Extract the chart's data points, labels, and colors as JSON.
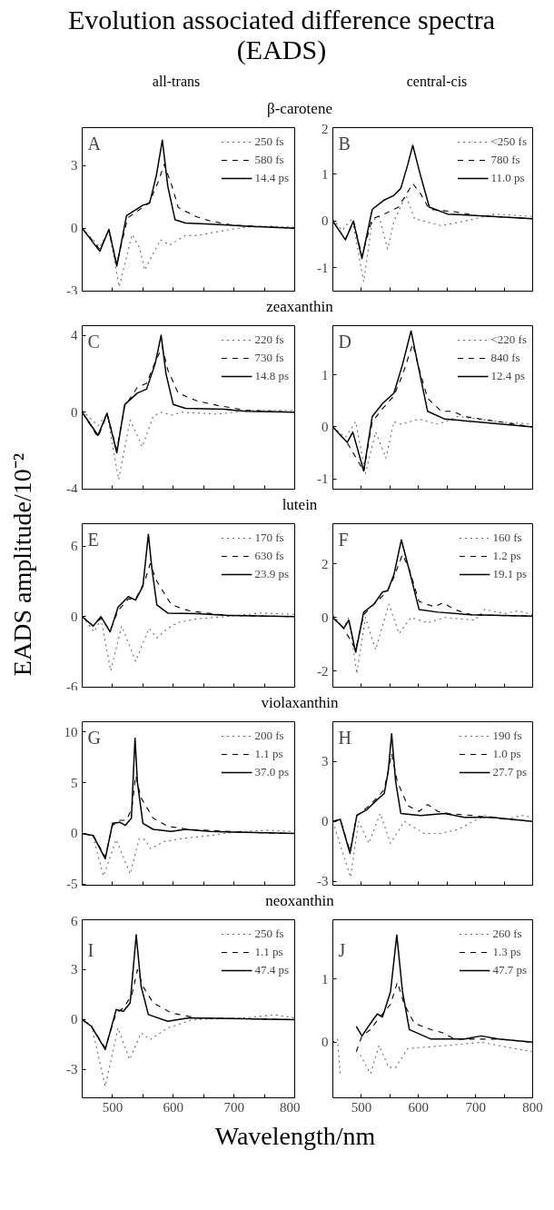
{
  "chart_data": [
    {
      "type": "line",
      "title": "Evolution associated difference spectra (EADS)",
      "subtitle": "β-carotene",
      "annotations": [
        "all-trans",
        "A"
      ],
      "xlim": [
        450,
        800
      ],
      "xticks": [
        500,
        {
          "value": 550,
          "label": null
        },
        600,
        {
          "value": 650,
          "label": null
        },
        700,
        {
          "value": 750,
          "label": null
        },
        800
      ],
      "ylim": [
        -3,
        4.8
      ],
      "yticks": [
        -3,
        0,
        3
      ],
      "tick_labels": "y",
      "legend": "top right",
      "grid": false,
      "series": [
        {
          "name": "250 fs",
          "color": "#666666",
          "line_style": "dotted",
          "x": [
            450,
            479,
            494,
            511,
            532,
            544,
            553,
            567,
            579,
            594,
            620,
            638,
            685,
            720,
            755,
            800
          ],
          "values": [
            0,
            -0.9,
            -0.1,
            -2.8,
            -0.3,
            -0.9,
            -2.0,
            -1.2,
            -0.55,
            -0.8,
            -0.35,
            -0.35,
            -0.1,
            0.05,
            0.1,
            0.05
          ]
        },
        {
          "name": "580 fs",
          "color": "#000000",
          "line_style": "dashed",
          "x": [
            450,
            479,
            494,
            507,
            525,
            550,
            560,
            575,
            585,
            598,
            608,
            638,
            661,
            697,
            732,
            800
          ],
          "values": [
            0,
            -1.0,
            -0.1,
            -1.7,
            0.5,
            1.0,
            1.2,
            2.2,
            3.05,
            2.0,
            1.0,
            0.55,
            0.35,
            0.15,
            0.1,
            0
          ]
        },
        {
          "name": "14.4 ps",
          "color": "#000000",
          "line_style": "solid",
          "x": [
            450,
            479,
            494,
            507,
            523,
            550,
            561,
            572,
            582,
            591,
            603,
            620,
            661,
            720,
            800
          ],
          "values": [
            0,
            -1.1,
            -0.05,
            -1.8,
            0.6,
            1.1,
            1.2,
            2.5,
            4.2,
            2.0,
            0.4,
            0.25,
            0.2,
            0.1,
            0
          ]
        }
      ]
    },
    {
      "type": "line",
      "annotations": [
        "central-cis",
        "B"
      ],
      "xlim": [
        450,
        800
      ],
      "xticks": [
        500,
        {
          "value": 550,
          "label": null
        },
        600,
        {
          "value": 650,
          "label": null
        },
        700,
        {
          "value": 750,
          "label": null
        },
        800
      ],
      "ylim": [
        -1.5,
        2
      ],
      "yticks": [
        -1,
        0,
        1,
        2
      ],
      "tick_labels": "y",
      "legend": "top right",
      "grid": false,
      "series": [
        {
          "name": "<250 fs",
          "color": "#666666",
          "line_style": "dotted",
          "x": [
            450,
            466,
            484,
            504,
            519,
            531,
            546,
            557,
            578,
            593,
            640,
            681,
            734,
            800
          ],
          "values": [
            0.05,
            -0.2,
            0.05,
            -1.3,
            0,
            0.1,
            -0.6,
            0,
            0.55,
            0.05,
            -0.1,
            0,
            0.15,
            0.1
          ]
        },
        {
          "name": "780 fs",
          "color": "#000000",
          "line_style": "dashed",
          "x": [
            450,
            472,
            486,
            501,
            519,
            540,
            565,
            580,
            590,
            603,
            619,
            663,
            700,
            800
          ],
          "values": [
            0,
            -0.4,
            0,
            -0.75,
            0.05,
            0.15,
            0.3,
            0.6,
            0.8,
            0.6,
            0.25,
            0.2,
            0.12,
            0.05
          ]
        },
        {
          "name": "11.0 ps",
          "color": "#000000",
          "line_style": "solid",
          "x": [
            450,
            472,
            486,
            501,
            519,
            540,
            557,
            569,
            581,
            590,
            603,
            619,
            651,
            699,
            800
          ],
          "values": [
            0,
            -0.4,
            0,
            -0.8,
            0.25,
            0.45,
            0.55,
            0.7,
            1.2,
            1.62,
            1.0,
            0.3,
            0.15,
            0.12,
            0.05
          ]
        }
      ]
    },
    {
      "type": "line",
      "subtitle": "zeaxanthin",
      "annotations": [
        "C"
      ],
      "xlim": [
        450,
        800
      ],
      "xticks": [
        500,
        {
          "value": 550,
          "label": null
        },
        600,
        {
          "value": 650,
          "label": null
        },
        700,
        {
          "value": 750,
          "label": null
        },
        800
      ],
      "ylim": [
        -4,
        4.5
      ],
      "yticks": [
        -4,
        0,
        4
      ],
      "tick_labels": "y",
      "legend": "top right",
      "grid": false,
      "series": [
        {
          "name": "220 fs",
          "color": "#666666",
          "line_style": "dotted",
          "x": [
            450,
            476,
            491,
            510,
            529,
            549,
            567,
            580,
            597,
            614,
            673,
            726,
            800
          ],
          "values": [
            0.1,
            -0.7,
            -0.1,
            -3.5,
            -0.4,
            -1.8,
            -0.2,
            0,
            -0.15,
            0,
            -0.1,
            0.1,
            0.1
          ]
        },
        {
          "name": "730 fs",
          "color": "#000000",
          "line_style": "dashed",
          "x": [
            450,
            476,
            491,
            507,
            520,
            541,
            556,
            570,
            582,
            591,
            608,
            638,
            673,
            720,
            800
          ],
          "values": [
            0,
            -1.3,
            -0.1,
            -1.95,
            0.3,
            1.3,
            1.5,
            2.6,
            3.4,
            2.2,
            1.0,
            0.6,
            0.35,
            0.1,
            0
          ]
        },
        {
          "name": "14.8 ps",
          "color": "#000000",
          "line_style": "solid",
          "x": [
            450,
            476,
            491,
            507,
            520,
            541,
            556,
            570,
            580,
            588,
            600,
            620,
            685,
            720,
            800
          ],
          "values": [
            0,
            -1.2,
            -0.05,
            -2.1,
            0.4,
            1.0,
            1.2,
            2.5,
            4.0,
            2.0,
            0.4,
            0.2,
            0.15,
            0.05,
            0
          ]
        }
      ]
    },
    {
      "type": "line",
      "annotations": [
        "D"
      ],
      "xlim": [
        450,
        800
      ],
      "xticks": [
        500,
        {
          "value": 550,
          "label": null
        },
        600,
        {
          "value": 650,
          "label": null
        },
        700,
        {
          "value": 750,
          "label": null
        },
        800
      ],
      "ylim": [
        -1.2,
        1.95
      ],
      "yticks": [
        -1,
        0,
        1
      ],
      "tick_labels": "y",
      "legend": "top right",
      "grid": false,
      "series": [
        {
          "name": "<220 fs",
          "color": "#666666",
          "line_style": "dotted",
          "x": [
            450,
            472,
            490,
            507,
            525,
            543,
            557,
            569,
            601,
            634,
            669,
            740,
            800
          ],
          "values": [
            0,
            -0.2,
            0.1,
            -0.9,
            -0.1,
            -0.6,
            0.1,
            0.05,
            0.15,
            0.05,
            0.2,
            0.1,
            0.05
          ]
        },
        {
          "name": "840 fs",
          "color": "#000000",
          "line_style": "dashed",
          "x": [
            450,
            475,
            504,
            519,
            537,
            557,
            572,
            590,
            599,
            616,
            640,
            660,
            681,
            740,
            800
          ],
          "values": [
            0,
            -0.3,
            -0.85,
            0.1,
            0.35,
            0.6,
            1.0,
            1.6,
            1.2,
            0.55,
            0.3,
            0.3,
            0.2,
            0.1,
            0
          ]
        },
        {
          "name": "12.4 ps",
          "color": "#000000",
          "line_style": "solid",
          "x": [
            450,
            475,
            485,
            504,
            519,
            537,
            557,
            572,
            587,
            599,
            616,
            646,
            699,
            800
          ],
          "values": [
            0,
            -0.3,
            -0.1,
            -0.85,
            0.2,
            0.45,
            0.65,
            1.2,
            1.85,
            1.2,
            0.3,
            0.15,
            0.1,
            0
          ]
        }
      ]
    },
    {
      "type": "line",
      "subtitle": "lutein",
      "ylabel": "EADS amplitude/10⁻²",
      "annotations": [
        "E"
      ],
      "xlim": [
        450,
        800
      ],
      "xticks": [
        500,
        {
          "value": 550,
          "label": null
        },
        600,
        {
          "value": 650,
          "label": null
        },
        700,
        {
          "value": 750,
          "label": null
        },
        800
      ],
      "ylim": [
        -6,
        7.9
      ],
      "yticks": [
        -6,
        0,
        6
      ],
      "tick_labels": "y",
      "legend": "top right",
      "grid": false,
      "series": [
        {
          "name": "170 fs",
          "color": "#666666",
          "line_style": "dotted",
          "x": [
            450,
            470,
            481,
            497,
            515,
            538,
            560,
            573,
            591,
            608,
            638,
            685,
            744,
            800
          ],
          "values": [
            0,
            -1.3,
            -0.2,
            -4.6,
            -0.8,
            -3.8,
            -1.0,
            -1.8,
            -1.0,
            -0.5,
            -0.2,
            0,
            0.3,
            0.2
          ]
        },
        {
          "name": "630 fs",
          "color": "#000000",
          "line_style": "dashed",
          "x": [
            450,
            468,
            481,
            496,
            509,
            526,
            538,
            553,
            562,
            573,
            597,
            626,
            655,
            691,
            800
          ],
          "values": [
            0,
            -0.8,
            -0.1,
            -1.2,
            0.5,
            1.5,
            1.5,
            3.0,
            4.5,
            3.0,
            1.0,
            0.5,
            0.3,
            0.1,
            0
          ]
        },
        {
          "name": "23.9 ps",
          "color": "#000000",
          "line_style": "solid",
          "x": [
            450,
            468,
            481,
            496,
            509,
            526,
            538,
            550,
            559,
            565,
            573,
            591,
            638,
            691,
            800
          ],
          "values": [
            0,
            -0.8,
            0,
            -1.3,
            0.8,
            1.7,
            1.4,
            2.6,
            7.0,
            4.0,
            1.0,
            0.3,
            0.25,
            0.1,
            0
          ]
        }
      ]
    },
    {
      "type": "line",
      "annotations": [
        "F"
      ],
      "xlim": [
        450,
        800
      ],
      "xticks": [
        500,
        {
          "value": 550,
          "label": null
        },
        600,
        {
          "value": 650,
          "label": null
        },
        700,
        {
          "value": 750,
          "label": null
        },
        800
      ],
      "ylim": [
        -2.6,
        3.5
      ],
      "yticks": [
        -2,
        0,
        2
      ],
      "tick_labels": "y",
      "legend": "top right",
      "grid": false,
      "series": [
        {
          "name": "160 fs",
          "color": "#666666",
          "line_style": "dotted",
          "x": [
            450,
            469,
            478,
            492,
            507,
            525,
            548,
            566,
            587,
            616,
            646,
            699,
            716,
            752,
            775,
            800
          ],
          "values": [
            0.1,
            -0.4,
            0,
            -2.1,
            0,
            -1.2,
            0.5,
            -0.6,
            0,
            -0.2,
            0,
            -0.1,
            0.3,
            0.15,
            0.25,
            0.1
          ]
        },
        {
          "name": "1.2 ps",
          "color": "#000000",
          "line_style": "dashed",
          "x": [
            450,
            469,
            490,
            504,
            522,
            537,
            546,
            557,
            572,
            584,
            601,
            628,
            643,
            663,
            693,
            800
          ],
          "values": [
            0,
            -0.4,
            -1.2,
            0.1,
            0.5,
            0.8,
            1.0,
            1.5,
            2.35,
            1.8,
            0.6,
            0.4,
            0.55,
            0.3,
            0.1,
            0.05
          ]
        },
        {
          "name": "19.1 ps",
          "color": "#000000",
          "line_style": "solid",
          "x": [
            450,
            469,
            478,
            490,
            504,
            522,
            537,
            546,
            557,
            570,
            587,
            601,
            634,
            693,
            800
          ],
          "values": [
            0,
            -0.4,
            -0.1,
            -1.3,
            0.2,
            0.5,
            0.95,
            1.0,
            1.6,
            2.9,
            1.5,
            0.3,
            0.2,
            0.1,
            0.05
          ]
        }
      ]
    },
    {
      "type": "line",
      "subtitle": "violaxanthin",
      "annotations": [
        "G"
      ],
      "xlim": [
        450,
        800
      ],
      "xticks": [
        500,
        {
          "value": 550,
          "label": null
        },
        600,
        {
          "value": 650,
          "label": null
        },
        700,
        {
          "value": 750,
          "label": null
        },
        800
      ],
      "ylim": [
        -5.1,
        11
      ],
      "yticks": [
        -5,
        0,
        5,
        10
      ],
      "tick_labels": "y",
      "legend": "top right",
      "grid": false,
      "series": [
        {
          "name": "200 fs",
          "color": "#666666",
          "line_style": "dotted",
          "x": [
            450,
            468,
            485,
            506,
            529,
            544,
            553,
            563,
            585,
            614,
            661,
            708,
            755,
            800
          ],
          "values": [
            0,
            -0.3,
            -4.2,
            -0.6,
            -4.0,
            -0.5,
            -0.6,
            -1.5,
            -0.8,
            -0.5,
            -0.2,
            0.2,
            0.3,
            0.2
          ]
        },
        {
          "name": "1.1 ps",
          "color": "#000000",
          "line_style": "dashed",
          "x": [
            450,
            468,
            488,
            500,
            512,
            523,
            532,
            538,
            547,
            567,
            591,
            626,
            661,
            720,
            800
          ],
          "values": [
            0,
            -0.2,
            -2.3,
            0.8,
            1.3,
            1.3,
            2.5,
            5.7,
            3.5,
            1.5,
            0.7,
            0.4,
            0.3,
            0.1,
            0
          ]
        },
        {
          "name": "37.0 ps",
          "color": "#000000",
          "line_style": "solid",
          "x": [
            450,
            468,
            488,
            500,
            512,
            521,
            531,
            537,
            541,
            550,
            567,
            597,
            620,
            661,
            720,
            800
          ],
          "values": [
            0,
            -0.2,
            -2.5,
            1.0,
            1.1,
            0.8,
            1.5,
            9.4,
            5.0,
            1.0,
            0.4,
            0.2,
            0.4,
            0.2,
            0.1,
            0
          ]
        }
      ]
    },
    {
      "type": "line",
      "annotations": [
        "H"
      ],
      "xlim": [
        450,
        800
      ],
      "xticks": [
        500,
        {
          "value": 550,
          "label": null
        },
        600,
        {
          "value": 650,
          "label": null
        },
        700,
        {
          "value": 750,
          "label": null
        },
        800
      ],
      "ylim": [
        -3.2,
        5
      ],
      "yticks": [
        -3,
        0,
        3
      ],
      "tick_labels": "y",
      "legend": "top right",
      "grid": false,
      "series": [
        {
          "name": "190 fs",
          "color": "#666666",
          "line_style": "dotted",
          "x": [
            450,
            481,
            495,
            513,
            533,
            551,
            575,
            610,
            640,
            669,
            716,
            752,
            781,
            800
          ],
          "values": [
            0,
            -2.8,
            0,
            -1.1,
            0.4,
            -1.1,
            0,
            -0.6,
            -0.6,
            -0.4,
            0.3,
            0.1,
            0.3,
            0.2
          ]
        },
        {
          "name": "1.0 ps",
          "color": "#000000",
          "line_style": "dashed",
          "x": [
            450,
            463,
            480,
            492,
            510,
            528,
            540,
            553,
            563,
            581,
            601,
            616,
            634,
            652,
            693,
            740,
            800
          ],
          "values": [
            0,
            0.1,
            -1.5,
            0.3,
            0.7,
            1.2,
            1.6,
            3.4,
            2.0,
            0.8,
            0.5,
            0.85,
            0.5,
            0.4,
            0.3,
            0.15,
            0
          ]
        },
        {
          "name": "27.7 ps",
          "color": "#000000",
          "line_style": "solid",
          "x": [
            450,
            463,
            480,
            492,
            510,
            528,
            540,
            547,
            553,
            560,
            569,
            604,
            646,
            681,
            728,
            800
          ],
          "values": [
            0,
            0.1,
            -1.6,
            0.3,
            0.6,
            1.1,
            1.4,
            2.5,
            4.4,
            2.0,
            0.4,
            0.3,
            0.4,
            0.2,
            0.2,
            0
          ]
        }
      ]
    },
    {
      "type": "line",
      "subtitle": "neoxanthin",
      "xlabel": "Wavelength/nm",
      "annotations": [
        "I"
      ],
      "xlim": [
        450,
        800
      ],
      "xticks": [
        500,
        {
          "value": 550,
          "label": null
        },
        600,
        {
          "value": 650,
          "label": null
        },
        700,
        {
          "value": 750,
          "label": null
        },
        800
      ],
      "ylim": [
        -4.7,
        6
      ],
      "yticks": [
        -3,
        0,
        3,
        6
      ],
      "legend": "top right",
      "grid": false,
      "series": [
        {
          "name": "250 fs",
          "color": "#666666",
          "line_style": "dotted",
          "x": [
            450,
            465,
            488,
            509,
            528,
            547,
            562,
            591,
            632,
            720,
            767,
            800
          ],
          "values": [
            0,
            -0.3,
            -4.0,
            -0.5,
            -2.4,
            -0.8,
            -1.2,
            -0.5,
            0,
            0.1,
            0.3,
            0.1
          ]
        },
        {
          "name": "1.1 ps",
          "color": "#000000",
          "line_style": "dashed",
          "x": [
            450,
            465,
            488,
            506,
            518,
            532,
            541,
            550,
            567,
            597,
            638,
            800
          ],
          "values": [
            0,
            -0.4,
            -1.7,
            0.4,
            0.7,
            1.5,
            3.0,
            2.0,
            1.0,
            0.4,
            0.1,
            0
          ]
        },
        {
          "name": "47.4 ps",
          "color": "#000000",
          "line_style": "solid",
          "x": [
            450,
            465,
            488,
            506,
            518,
            529,
            539,
            547,
            559,
            591,
            626,
            800
          ],
          "values": [
            0,
            -0.4,
            -1.8,
            0.6,
            0.5,
            1.0,
            5.1,
            2.0,
            0.3,
            -0.1,
            0.1,
            0
          ]
        }
      ]
    },
    {
      "type": "line",
      "annotations": [
        "J"
      ],
      "xlim": [
        450,
        800
      ],
      "xticks": [
        500,
        {
          "value": 550,
          "label": null
        },
        600,
        {
          "value": 650,
          "label": null
        },
        700,
        {
          "value": 750,
          "label": null
        },
        800
      ],
      "ylim": [
        -0.88,
        1.94
      ],
      "yticks": [
        0,
        1
      ],
      "legend": "top right",
      "grid": false,
      "series": [
        {
          "name": "260 fs",
          "color": "#666666",
          "line_style": "dotted",
          "x": [
            450,
            458,
            463,
            475,
            498,
            516,
            531,
            548,
            560,
            581,
            652,
            710,
            769,
            800
          ],
          "values": [
            0,
            0.05,
            -0.5,
            null,
            -0.2,
            -0.5,
            -0.05,
            -0.4,
            -0.4,
            -0.1,
            -0.05,
            0,
            -0.1,
            -0.15
          ]
        },
        {
          "name": "1.3 ps",
          "color": "#000000",
          "line_style": "dashed",
          "x": [
            491,
            501,
            516,
            528,
            551,
            563,
            575,
            593,
            622,
            643,
            663,
            740,
            800
          ],
          "values": [
            -0.15,
            0.1,
            0.2,
            0.35,
            0.6,
            0.95,
            0.6,
            0.3,
            0.2,
            0.15,
            0.05,
            0.05,
            0
          ]
        },
        {
          "name": "47.7 ps",
          "color": "#000000",
          "line_style": "solid",
          "x": [
            491,
            501,
            516,
            528,
            537,
            551,
            562,
            572,
            584,
            622,
            681,
            710,
            740,
            800
          ],
          "values": [
            0.25,
            0.1,
            0.3,
            0.45,
            0.4,
            0.8,
            1.7,
            0.8,
            0.2,
            0.05,
            0.05,
            0.1,
            0.05,
            0
          ]
        }
      ]
    }
  ]
}
